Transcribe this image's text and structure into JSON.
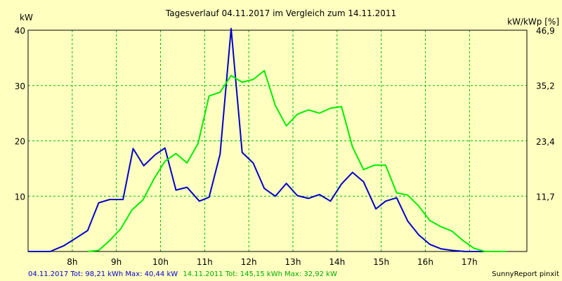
{
  "chart_data": {
    "type": "line",
    "title": "Tagesverlauf 04.11.2017 im Vergleich zum 14.11.2011",
    "ylabel_left": "kW",
    "ylabel_right": "kW/kWp [%]",
    "xlim": [
      7.0,
      18.3
    ],
    "ylim_left": [
      0,
      40
    ],
    "ylim_right": [
      0,
      46.9
    ],
    "x_ticks": [
      {
        "x": 8,
        "label": "8h"
      },
      {
        "x": 9,
        "label": "9h"
      },
      {
        "x": 10,
        "label": "10h"
      },
      {
        "x": 11,
        "label": "11h"
      },
      {
        "x": 12,
        "label": "12h"
      },
      {
        "x": 13,
        "label": "13h"
      },
      {
        "x": 14,
        "label": "14h"
      },
      {
        "x": 15,
        "label": "15h"
      },
      {
        "x": 16,
        "label": "16h"
      },
      {
        "x": 17,
        "label": "17h"
      }
    ],
    "y_ticks_left": [
      {
        "y": 10,
        "label": "10"
      },
      {
        "y": 20,
        "label": "20"
      },
      {
        "y": 30,
        "label": "30"
      },
      {
        "y": 40,
        "label": "40"
      }
    ],
    "y_ticks_right": [
      {
        "y": 11.7,
        "label": "11,7"
      },
      {
        "y": 23.4,
        "label": "23,4"
      },
      {
        "y": 35.2,
        "label": "35,2"
      },
      {
        "y": 46.9,
        "label": "46,9"
      }
    ],
    "grid": true,
    "series": [
      {
        "name": "04.11.2017",
        "color": "#0000cc",
        "points": [
          [
            7.0,
            0
          ],
          [
            7.5,
            0
          ],
          [
            7.8,
            1
          ],
          [
            8.1,
            2.5
          ],
          [
            8.35,
            3.8
          ],
          [
            8.6,
            8.8
          ],
          [
            8.85,
            9.4
          ],
          [
            9.15,
            9.4
          ],
          [
            9.38,
            18.6
          ],
          [
            9.62,
            15.5
          ],
          [
            9.88,
            17.5
          ],
          [
            10.1,
            18.7
          ],
          [
            10.35,
            11.1
          ],
          [
            10.6,
            11.6
          ],
          [
            10.88,
            9.1
          ],
          [
            11.1,
            9.8
          ],
          [
            11.35,
            17.6
          ],
          [
            11.6,
            40.3
          ],
          [
            11.85,
            17.9
          ],
          [
            12.1,
            16.0
          ],
          [
            12.35,
            11.4
          ],
          [
            12.6,
            10.0
          ],
          [
            12.85,
            12.3
          ],
          [
            13.1,
            10.1
          ],
          [
            13.35,
            9.6
          ],
          [
            13.6,
            10.3
          ],
          [
            13.85,
            9.1
          ],
          [
            14.1,
            12.2
          ],
          [
            14.35,
            14.3
          ],
          [
            14.6,
            12.6
          ],
          [
            14.88,
            7.7
          ],
          [
            15.1,
            9.1
          ],
          [
            15.35,
            9.7
          ],
          [
            15.6,
            5.5
          ],
          [
            15.85,
            3.0
          ],
          [
            16.1,
            1.3
          ],
          [
            16.35,
            0.5
          ],
          [
            16.6,
            0.2
          ],
          [
            16.9,
            0
          ],
          [
            17.4,
            0
          ]
        ]
      },
      {
        "name": "14.11.2011",
        "color": "#00ee00",
        "points": [
          [
            8.35,
            0
          ],
          [
            8.6,
            0.2
          ],
          [
            8.85,
            2.0
          ],
          [
            9.1,
            4.1
          ],
          [
            9.35,
            7.5
          ],
          [
            9.6,
            9.3
          ],
          [
            9.85,
            13.1
          ],
          [
            10.1,
            16.3
          ],
          [
            10.35,
            17.7
          ],
          [
            10.6,
            16.0
          ],
          [
            10.85,
            19.5
          ],
          [
            11.1,
            28.1
          ],
          [
            11.35,
            28.8
          ],
          [
            11.6,
            31.8
          ],
          [
            11.85,
            30.6
          ],
          [
            12.1,
            31.1
          ],
          [
            12.35,
            32.7
          ],
          [
            12.6,
            26.4
          ],
          [
            12.85,
            22.7
          ],
          [
            13.1,
            24.8
          ],
          [
            13.35,
            25.6
          ],
          [
            13.6,
            25.0
          ],
          [
            13.85,
            25.9
          ],
          [
            14.1,
            26.2
          ],
          [
            14.35,
            18.9
          ],
          [
            14.6,
            14.8
          ],
          [
            14.85,
            15.6
          ],
          [
            15.1,
            15.6
          ],
          [
            15.35,
            10.6
          ],
          [
            15.6,
            10.2
          ],
          [
            15.85,
            8.2
          ],
          [
            16.1,
            5.6
          ],
          [
            16.35,
            4.5
          ],
          [
            16.6,
            3.7
          ],
          [
            16.85,
            2.0
          ],
          [
            17.1,
            0.6
          ],
          [
            17.35,
            0
          ],
          [
            17.85,
            0
          ]
        ]
      }
    ]
  },
  "footer": {
    "series1_text": "04.11.2017 Tot: 98,21 kWh Max: 40,44 kW",
    "series2_text": "14.11.2011 Tot: 145,15 kWh Max: 32,92 kW",
    "brand": "SunnyReport pinxit"
  }
}
